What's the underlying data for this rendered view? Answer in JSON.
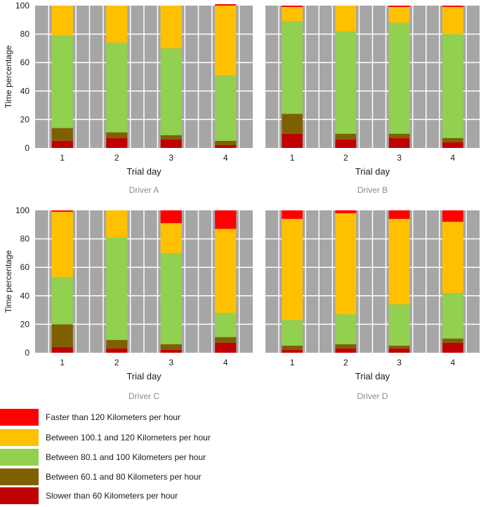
{
  "colors": {
    "faster_120": "#ff0000",
    "between_100_120": "#ffc000",
    "between_80_100": "#92d050",
    "between_60_80": "#7f6000",
    "slower_60": "#c00000",
    "plot_background": "#a6a6a6",
    "gridline": "#ffffff"
  },
  "chart_data": [
    {
      "type": "bar",
      "stacked": true,
      "title": "Driver A",
      "xlabel": "Trial day",
      "ylabel": "Time percentage",
      "ylim": [
        0,
        100
      ],
      "yticks": [
        0,
        20,
        40,
        60,
        80,
        100
      ],
      "categories": [
        "1",
        "2",
        "3",
        "4"
      ],
      "grid": true,
      "series": [
        {
          "name": "Slower than 60 Kilometers per hour",
          "color_key": "slower_60",
          "values": [
            5,
            7,
            6,
            2
          ]
        },
        {
          "name": "Between 60.1 and 80 Kilometers per hour",
          "color_key": "between_60_80",
          "values": [
            9,
            4,
            3,
            3
          ]
        },
        {
          "name": "Between 80.1 and 100 Kilometers per hour",
          "color_key": "between_80_100",
          "values": [
            65,
            63,
            61,
            46
          ]
        },
        {
          "name": "Between 100.1 and 120 Kilometers per hour",
          "color_key": "between_100_120",
          "values": [
            21,
            26,
            30,
            49
          ]
        },
        {
          "name": "Faster than 120 Kilometers per hour",
          "color_key": "faster_120",
          "values": [
            0,
            0,
            0,
            1
          ]
        }
      ]
    },
    {
      "type": "bar",
      "stacked": true,
      "title": "Driver B",
      "xlabel": "Trial day",
      "ylabel": "",
      "ylim": [
        0,
        100
      ],
      "yticks": [],
      "categories": [
        "1",
        "2",
        "3",
        "4"
      ],
      "grid": true,
      "series": [
        {
          "name": "Slower than 60 Kilometers per hour",
          "color_key": "slower_60",
          "values": [
            10,
            6,
            7,
            4
          ]
        },
        {
          "name": "Between 60.1 and 80 Kilometers per hour",
          "color_key": "between_60_80",
          "values": [
            14,
            4,
            3,
            3
          ]
        },
        {
          "name": "Between 80.1 and 100 Kilometers per hour",
          "color_key": "between_80_100",
          "values": [
            65,
            72,
            78,
            73
          ]
        },
        {
          "name": "Between 100.1 and 120 Kilometers per hour",
          "color_key": "between_100_120",
          "values": [
            10,
            18,
            11,
            19
          ]
        },
        {
          "name": "Faster than 120 Kilometers per hour",
          "color_key": "faster_120",
          "values": [
            1,
            0,
            1,
            1
          ]
        }
      ]
    },
    {
      "type": "bar",
      "stacked": true,
      "title": "Driver C",
      "xlabel": "Trial day",
      "ylabel": "Time percentage",
      "ylim": [
        0,
        100
      ],
      "yticks": [
        0,
        20,
        40,
        60,
        80,
        100
      ],
      "categories": [
        "1",
        "2",
        "3",
        "4"
      ],
      "grid": true,
      "series": [
        {
          "name": "Slower than 60 Kilometers per hour",
          "color_key": "slower_60",
          "values": [
            4,
            3,
            2,
            7
          ]
        },
        {
          "name": "Between 60.1 and 80 Kilometers per hour",
          "color_key": "between_60_80",
          "values": [
            16,
            6,
            4,
            4
          ]
        },
        {
          "name": "Between 80.1 and 100 Kilometers per hour",
          "color_key": "between_80_100",
          "values": [
            33,
            72,
            64,
            17
          ]
        },
        {
          "name": "Between 100.1 and 120 Kilometers per hour",
          "color_key": "between_100_120",
          "values": [
            46,
            19,
            21,
            59
          ]
        },
        {
          "name": "Faster than 120 Kilometers per hour",
          "color_key": "faster_120",
          "values": [
            1,
            0,
            9,
            13
          ]
        }
      ]
    },
    {
      "type": "bar",
      "stacked": true,
      "title": "Driver D",
      "xlabel": "Trial day",
      "ylabel": "",
      "ylim": [
        0,
        100
      ],
      "yticks": [],
      "categories": [
        "1",
        "2",
        "3",
        "4"
      ],
      "grid": true,
      "series": [
        {
          "name": "Slower than 60 Kilometers per hour",
          "color_key": "slower_60",
          "values": [
            2,
            3,
            3,
            7
          ]
        },
        {
          "name": "Between 60.1 and 80 Kilometers per hour",
          "color_key": "between_60_80",
          "values": [
            3,
            3,
            2,
            3
          ]
        },
        {
          "name": "Between 80.1 and 100 Kilometers per hour",
          "color_key": "between_80_100",
          "values": [
            18,
            21,
            29,
            32
          ]
        },
        {
          "name": "Between 100.1 and 120 Kilometers per hour",
          "color_key": "between_100_120",
          "values": [
            71,
            71,
            60,
            50
          ]
        },
        {
          "name": "Faster than 120 Kilometers per hour",
          "color_key": "faster_120",
          "values": [
            6,
            2,
            6,
            8
          ]
        }
      ]
    }
  ],
  "legend": {
    "items": [
      {
        "label": "Faster than 120 Kilometers per hour",
        "color_key": "faster_120"
      },
      {
        "label": "Between 100.1 and 120 Kilometers per hour",
        "color_key": "between_100_120"
      },
      {
        "label": "Between 80.1 and 100 Kilometers per hour",
        "color_key": "between_80_100"
      },
      {
        "label": "Between 60.1 and 80 Kilometers per hour",
        "color_key": "between_60_80"
      },
      {
        "label": "Slower than 60 Kilometers per hour",
        "color_key": "slower_60"
      }
    ]
  }
}
